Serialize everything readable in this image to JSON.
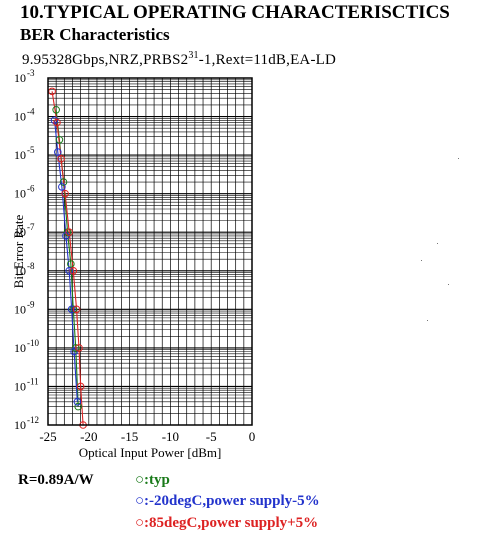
{
  "header": {
    "title": "10.TYPICAL OPERATING CHARACTERISCTICS",
    "subtitle": "BER Characteristics",
    "condition_prefix": "9.95328Gbps,NRZ,PRBS2",
    "condition_sup": "31",
    "condition_suffix": "-1,Rext=11dB,EA-LD"
  },
  "note": "R=0.89A/W",
  "legend": [
    {
      "label": "○:typ",
      "color": "#1a7a1a"
    },
    {
      "label": "○:-20degC,power supply-5%",
      "color": "#2233cc"
    },
    {
      "label": "○:85degC,power supply+5%",
      "color": "#dd2222"
    }
  ],
  "chart_data": {
    "type": "line",
    "xlabel": "Optical Input Power [dBm]",
    "ylabel": "Bit Error Rate",
    "xlim": [
      -25,
      0
    ],
    "ylim_exp": [
      -12,
      -3
    ],
    "y_scale": "log",
    "x_ticks": [
      "-25",
      "-20",
      "-15",
      "-10",
      "-5",
      "0"
    ],
    "y_ticks_exp": [
      "-12",
      "-11",
      "-10",
      "-9",
      "-8",
      "-7",
      "-6",
      "-5",
      "-4",
      "-3"
    ],
    "grid": true,
    "series": [
      {
        "name": "typ",
        "color": "#1a7a1a",
        "points": [
          [
            -24.0,
            0.00015
          ],
          [
            -23.6,
            2.5e-05
          ],
          [
            -23.1,
            2e-06
          ],
          [
            -22.6,
            1e-07
          ],
          [
            -22.2,
            1.5e-08
          ],
          [
            -21.9,
            1e-09
          ],
          [
            -21.6,
            1e-10
          ],
          [
            -21.3,
            3e-12
          ]
        ]
      },
      {
        "name": "-20degC,power supply-5%",
        "color": "#2233cc",
        "points": [
          [
            -24.2,
            8e-05
          ],
          [
            -23.8,
            1.2e-05
          ],
          [
            -23.3,
            1.5e-06
          ],
          [
            -22.8,
            8e-08
          ],
          [
            -22.4,
            1e-08
          ],
          [
            -22.1,
            1e-09
          ],
          [
            -21.8,
            8e-11
          ],
          [
            -21.4,
            4e-12
          ]
        ]
      },
      {
        "name": "85degC,power supply+5%",
        "color": "#dd2222",
        "points": [
          [
            -24.5,
            0.00045
          ],
          [
            -23.9,
            7e-05
          ],
          [
            -23.4,
            8e-06
          ],
          [
            -22.9,
            1e-06
          ],
          [
            -22.4,
            1e-07
          ],
          [
            -21.9,
            1e-08
          ],
          [
            -21.5,
            1e-09
          ],
          [
            -21.2,
            1e-10
          ],
          [
            -21.0,
            1e-11
          ],
          [
            -20.7,
            1e-12
          ]
        ]
      }
    ]
  }
}
